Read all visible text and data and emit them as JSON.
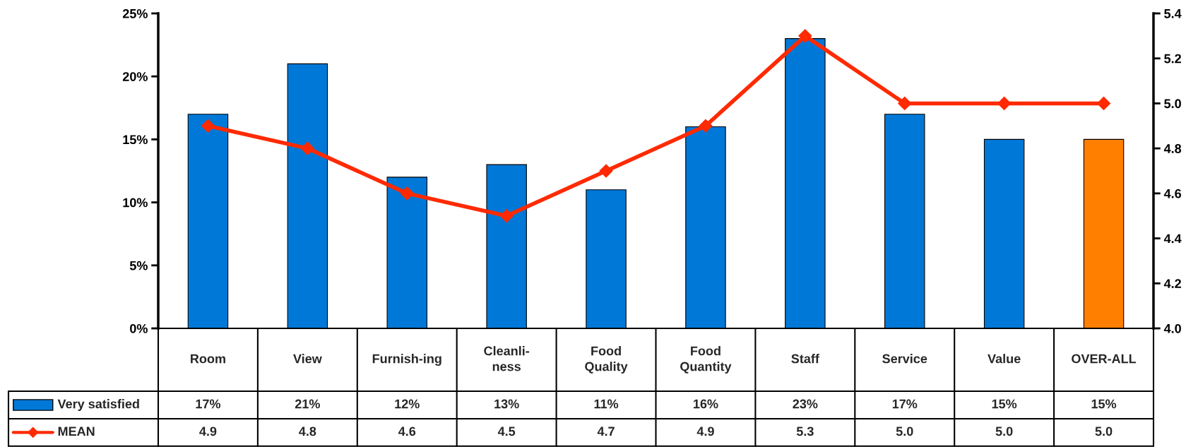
{
  "chart_data": {
    "type": "bar",
    "categories": [
      "Room",
      "View",
      "Furnish-ing",
      "Cleanli-\nness",
      "Food\nQuality",
      "Food\nQuantity",
      "Staff",
      "Service",
      "Value",
      "OVER-ALL"
    ],
    "series": [
      {
        "name": "Very satisfied",
        "color": "#0078d7",
        "colors": [
          "#0078d7",
          "#0078d7",
          "#0078d7",
          "#0078d7",
          "#0078d7",
          "#0078d7",
          "#0078d7",
          "#0078d7",
          "#0078d7",
          "#ff7f00"
        ],
        "values": [
          17,
          21,
          12,
          13,
          11,
          16,
          23,
          17,
          15,
          15
        ],
        "value_labels": [
          "17%",
          "21%",
          "12%",
          "13%",
          "11%",
          "16%",
          "23%",
          "17%",
          "15%",
          "15%"
        ]
      },
      {
        "name": "MEAN",
        "type": "line",
        "axis": "y2",
        "color": "#ff2a00",
        "marker": "diamond",
        "values": [
          4.9,
          4.8,
          4.6,
          4.5,
          4.7,
          4.9,
          5.3,
          5.0,
          5.0,
          5.0
        ],
        "value_labels": [
          "4.9",
          "4.8",
          "4.6",
          "4.5",
          "4.7",
          "4.9",
          "5.3",
          "5.0",
          "5.0",
          "5.0"
        ]
      }
    ],
    "ylim": [
      0,
      25
    ],
    "yticks": [
      {
        "value": 0,
        "label": "0%"
      },
      {
        "value": 5,
        "label": "5%"
      },
      {
        "value": 10,
        "label": "10%"
      },
      {
        "value": 15,
        "label": "15%"
      },
      {
        "value": 20,
        "label": "20%"
      },
      {
        "value": 25,
        "label": "25%"
      }
    ],
    "y2lim": [
      4.0,
      5.4
    ],
    "y2ticks": [
      {
        "value": 4.0,
        "label": "4.0"
      },
      {
        "value": 4.2,
        "label": "4.2"
      },
      {
        "value": 4.4,
        "label": "4.4"
      },
      {
        "value": 4.6,
        "label": "4.6"
      },
      {
        "value": 4.8,
        "label": "4.8"
      },
      {
        "value": 5.0,
        "label": "5.0"
      },
      {
        "value": 5.2,
        "label": "5.2"
      },
      {
        "value": 5.4,
        "label": "5.4"
      }
    ],
    "grid": false,
    "legend": "bottom left"
  }
}
